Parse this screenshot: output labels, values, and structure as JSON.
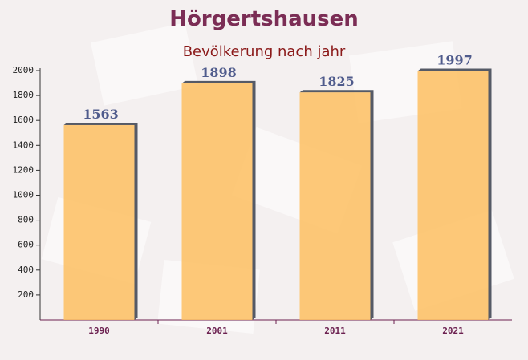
{
  "chart_data": {
    "type": "bar",
    "title": "Hörgertshausen",
    "subtitle": "Bevölkerung nach jahr",
    "categories": [
      "1990",
      "2001",
      "2011",
      "2021"
    ],
    "values": [
      1563,
      1898,
      1825,
      1997
    ],
    "color": "#fdc062",
    "ylim": [
      0,
      2000
    ],
    "yticks": [
      200,
      400,
      600,
      800,
      1000,
      1200,
      1400,
      1600,
      1800,
      2000
    ]
  }
}
